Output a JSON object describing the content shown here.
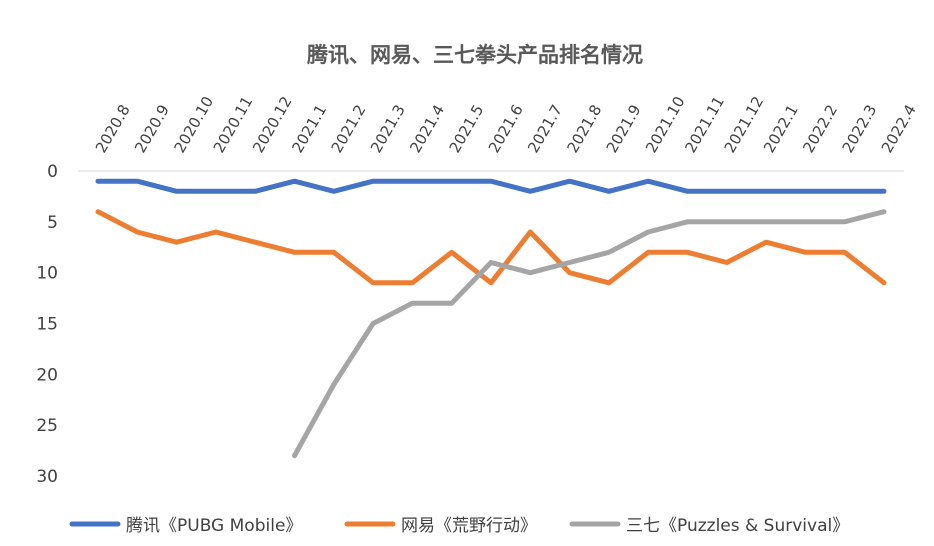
{
  "chart_data": {
    "type": "line",
    "title": "腾讯、网易、三七拳头产品排名情况",
    "xlabel": "",
    "ylabel": "",
    "categories": [
      "2020.8",
      "2020.9",
      "2020.10",
      "2020.11",
      "2020.12",
      "2021.1",
      "2021.2",
      "2021.3",
      "2021.4",
      "2021.5",
      "2021.6",
      "2021.7",
      "2021.8",
      "2021.9",
      "2021.10",
      "2021.11",
      "2021.12",
      "2022.1",
      "2022.2",
      "2022.3",
      "2022.4"
    ],
    "y_ticks": [
      "0",
      "5",
      "10",
      "15",
      "20",
      "25",
      "30"
    ],
    "ylim": [
      0,
      30
    ],
    "y_reversed": true,
    "legend_position": "bottom",
    "series": [
      {
        "name": "腾讯《PUBG Mobile》",
        "color": "#4472C4",
        "values": [
          1,
          1,
          2,
          2,
          2,
          1,
          2,
          1,
          1,
          1,
          1,
          2,
          1,
          2,
          1,
          2,
          2,
          2,
          2,
          2,
          2
        ]
      },
      {
        "name": "网易《荒野行动》",
        "color": "#ED7D31",
        "values": [
          4,
          6,
          7,
          6,
          7,
          8,
          8,
          11,
          11,
          8,
          11,
          6,
          10,
          11,
          8,
          8,
          9,
          7,
          8,
          8,
          11
        ]
      },
      {
        "name": "三七《Puzzles & Survival》",
        "color": "#A5A5A5",
        "values": [
          null,
          null,
          null,
          null,
          null,
          28,
          21,
          15,
          13,
          13,
          9,
          10,
          9,
          8,
          6,
          5,
          5,
          5,
          5,
          5,
          4
        ]
      }
    ]
  }
}
